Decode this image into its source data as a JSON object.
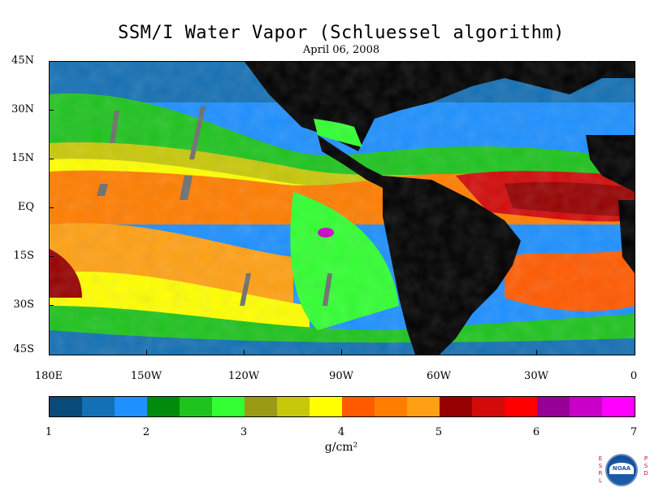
{
  "title": "SSM/I Water Vapor (Schluessel algorithm)",
  "subtitle": "April 06, 2008",
  "latitude_labels": [
    "45N",
    "30N",
    "15N",
    "EQ",
    "15S",
    "30S",
    "45S"
  ],
  "longitude_labels": [
    "180E",
    "150W",
    "120W",
    "90W",
    "60W",
    "30W",
    "0"
  ],
  "colorbar": {
    "tick_labels": [
      "1",
      "2",
      "3",
      "4",
      "5",
      "6",
      "7"
    ],
    "unit": "g/cm²",
    "colors": [
      "#084a78",
      "#1470b4",
      "#1e90ff",
      "#008c0a",
      "#1ec31e",
      "#32ff32",
      "#9a9a14",
      "#c8c80a",
      "#ffff00",
      "#ff5a00",
      "#ff7d00",
      "#ffa014",
      "#960000",
      "#d20a0a",
      "#ff0000",
      "#960096",
      "#c800c8",
      "#ff00ff"
    ],
    "range": [
      1,
      7
    ]
  },
  "map": {
    "land_color": "#000000",
    "no_data_color": "#6e6e6e"
  },
  "logo": {
    "left_letters": [
      "E",
      "S",
      "R",
      "L"
    ],
    "right_letters": [
      "P",
      "S",
      "D"
    ],
    "name": "NOAA"
  }
}
